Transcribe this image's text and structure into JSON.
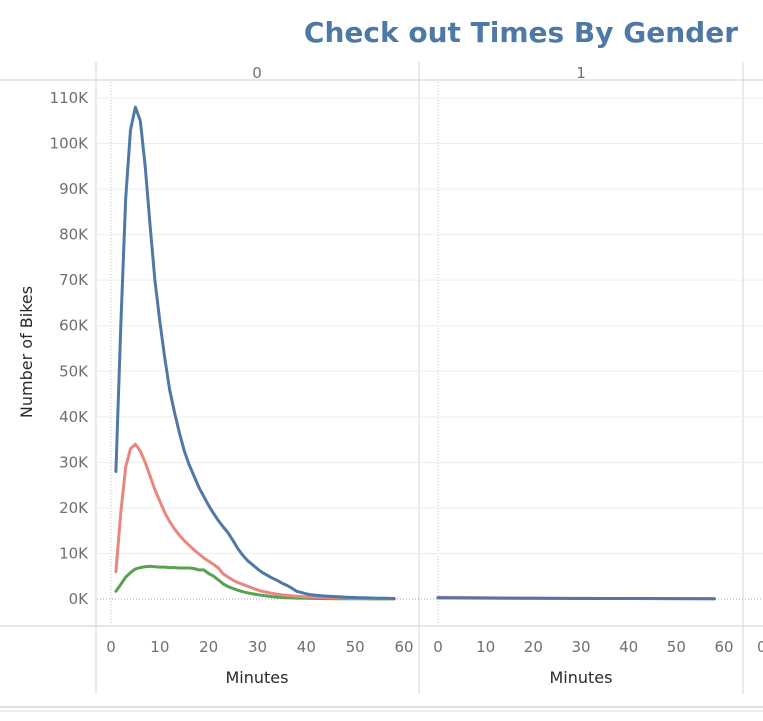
{
  "chart_data": {
    "type": "line",
    "title": "Check out Times By Gender",
    "ylabel": "Number of Bikes",
    "xlabel": "Minutes",
    "ylim": [
      0,
      110000
    ],
    "xlim": [
      0,
      60
    ],
    "y_ticks": [
      "0K",
      "10K",
      "20K",
      "30K",
      "40K",
      "50K",
      "60K",
      "70K",
      "80K",
      "90K",
      "100K",
      "110K"
    ],
    "x_ticks": [
      "0",
      "10",
      "20",
      "30",
      "40",
      "50",
      "60"
    ],
    "grid": true,
    "colors": {
      "title": "#4e79a7",
      "series_blue": "#4e79a7",
      "series_red": "#e8877f",
      "series_green": "#59a14f"
    },
    "panes": [
      {
        "header": "0",
        "series": [
          {
            "color": "#4e79a7",
            "x": [
              1,
              2,
              3,
              4,
              5,
              6,
              7,
              8,
              9,
              10,
              11,
              12,
              13,
              14,
              15,
              16,
              17,
              18,
              19,
              20,
              21,
              22,
              23,
              24,
              25,
              26,
              27,
              28,
              29,
              30,
              31,
              32,
              33,
              34,
              35,
              36,
              37,
              38,
              39,
              40,
              41,
              42,
              43,
              44,
              45,
              46,
              47,
              48,
              49,
              50,
              51,
              52,
              53,
              54,
              55,
              56,
              57,
              58
            ],
            "y": [
              28000,
              60000,
              88000,
              103000,
              108000,
              105000,
              95000,
              82000,
              70000,
              61000,
              53000,
              46000,
              41000,
              36500,
              32500,
              29500,
              27000,
              24500,
              22500,
              20500,
              18800,
              17200,
              15800,
              14500,
              12800,
              11000,
              9600,
              8400,
              7500,
              6600,
              5800,
              5200,
              4600,
              4100,
              3500,
              3000,
              2400,
              1700,
              1400,
              1150,
              950,
              820,
              720,
              640,
              580,
              520,
              460,
              400,
              360,
              320,
              290,
              260,
              230,
              200,
              180,
              160,
              140,
              120
            ]
          },
          {
            "color": "#e8877f",
            "x": [
              1,
              2,
              3,
              4,
              5,
              6,
              7,
              8,
              9,
              10,
              11,
              12,
              13,
              14,
              15,
              16,
              17,
              18,
              19,
              20,
              21,
              22,
              23,
              24,
              25,
              26,
              27,
              28,
              29,
              30,
              31,
              32,
              33,
              34,
              35,
              36,
              37,
              38,
              39,
              40,
              41,
              42,
              43,
              44,
              45,
              46,
              47,
              48,
              49,
              50,
              51,
              52,
              53,
              54,
              55,
              56,
              57,
              58
            ],
            "y": [
              6000,
              19000,
              29000,
              33000,
              34000,
              32500,
              30000,
              27000,
              24000,
              21500,
              19000,
              17000,
              15400,
              14000,
              12800,
              11800,
              10800,
              9900,
              9000,
              8300,
              7600,
              6800,
              5500,
              4800,
              4100,
              3600,
              3200,
              2800,
              2400,
              2000,
              1700,
              1450,
              1250,
              1050,
              900,
              780,
              680,
              600,
              520,
              460,
              410,
              370,
              330,
              300,
              270,
              240,
              220,
              200,
              180,
              160,
              140,
              130,
              120,
              110,
              100,
              90,
              80,
              70
            ]
          },
          {
            "color": "#59a14f",
            "x": [
              1,
              2,
              3,
              4,
              5,
              6,
              7,
              8,
              9,
              10,
              11,
              12,
              13,
              14,
              15,
              16,
              17,
              18,
              19,
              20,
              21,
              22,
              23,
              24,
              25,
              26,
              27,
              28,
              29,
              30,
              31,
              32,
              33,
              34,
              35,
              36,
              37,
              38,
              39,
              40,
              41,
              42,
              43,
              44,
              45,
              46,
              47,
              48,
              49,
              50,
              51,
              52,
              53,
              54,
              55,
              56,
              57,
              58
            ],
            "y": [
              1700,
              3200,
              4800,
              5800,
              6600,
              6900,
              7100,
              7200,
              7100,
              7000,
              7000,
              6900,
              6900,
              6800,
              6800,
              6800,
              6700,
              6400,
              6400,
              5600,
              5000,
              4200,
              3300,
              2700,
              2300,
              1900,
              1600,
              1350,
              1150,
              950,
              800,
              650,
              520,
              420,
              340,
              280,
              240,
              200,
              170,
              150,
              130,
              110,
              100,
              90,
              80,
              70,
              60,
              55,
              50,
              45,
              40,
              35,
              30,
              25,
              22,
              20,
              18,
              15
            ]
          }
        ]
      },
      {
        "header": "1",
        "series": [
          {
            "color": "#4e79a7",
            "x": [
              0,
              10,
              20,
              30,
              40,
              50,
              58
            ],
            "y": [
              250,
              200,
              150,
              120,
              100,
              80,
              60
            ]
          },
          {
            "color": "#e8877f",
            "x": [
              0,
              10,
              20,
              30,
              40,
              50,
              58
            ],
            "y": [
              380,
              260,
              180,
              130,
              100,
              80,
              60
            ]
          }
        ]
      }
    ]
  }
}
